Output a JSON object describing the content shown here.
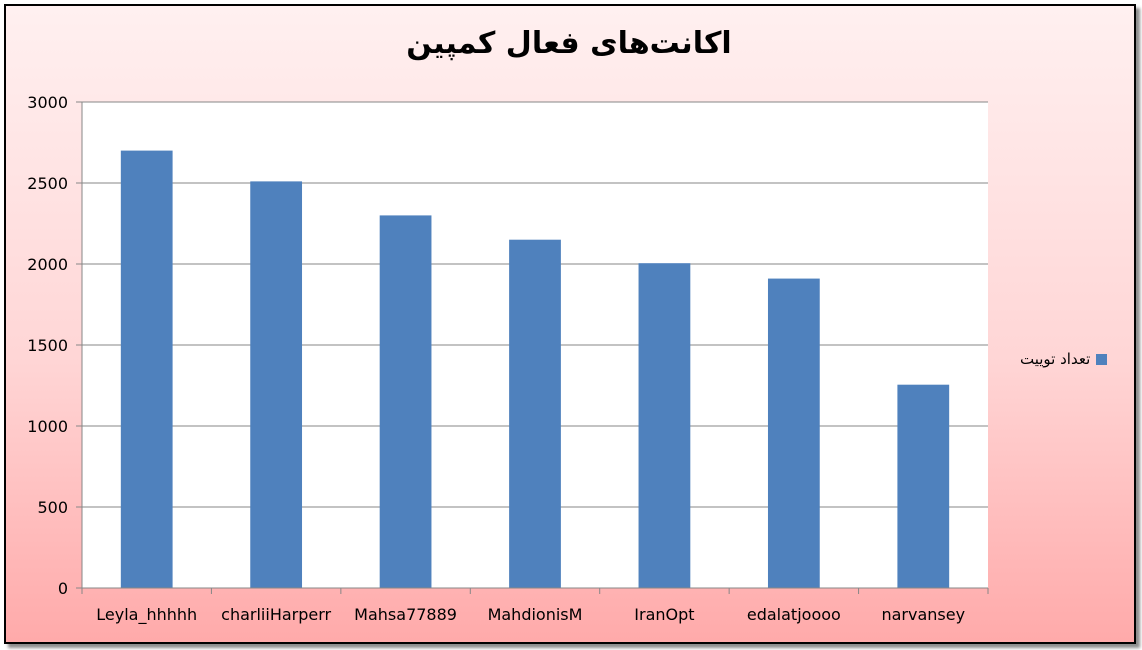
{
  "chart_data": {
    "type": "bar",
    "title": "اکانت‌های فعال کمپین",
    "categories": [
      "Leyla_hhhhh",
      "charliiHarperr",
      "Mahsa77889",
      "MahdionisM",
      "IranOpt",
      "edalatjoooo",
      "narvansey"
    ],
    "series": [
      {
        "name": "تعداد توییت",
        "color": "#4f81bd",
        "values": [
          2700,
          2510,
          2300,
          2150,
          2005,
          1910,
          1255
        ]
      }
    ],
    "ylim": [
      0,
      3000
    ],
    "yticks": [
      0,
      500,
      1000,
      1500,
      2000,
      2500,
      3000
    ],
    "grid": true,
    "legend_position": "right"
  }
}
